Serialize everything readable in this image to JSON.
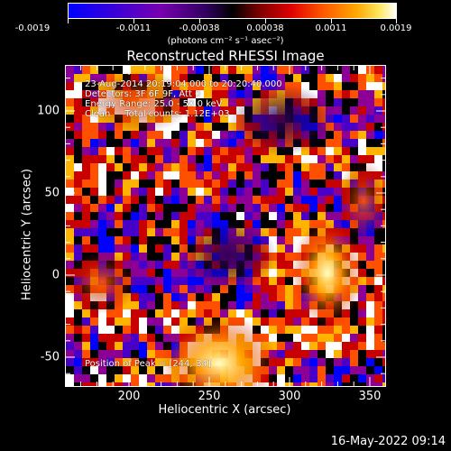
{
  "colorbar": {
    "tick_labels": [
      "-0.0019",
      "-0.0011",
      "-0.00038",
      "0.00038",
      "0.0011",
      "0.0019"
    ],
    "units": "(photons cm⁻² s⁻¹ asec⁻²)",
    "range": [
      -0.0019,
      0.0019
    ]
  },
  "plot": {
    "title": "Reconstructed RHESSI Image",
    "info_lines": [
      "23-Aug-2014 20:19:04.000 to 20:20:40.000",
      "Detectors: 3F 6F 9F, Att 0",
      "Energy Range: 25.0 - 50.0 keV",
      "Clean     Total counts: 1.12E+03"
    ],
    "peak_label": "Position of Peak = [244,-34]",
    "xlabel": "Heliocentric X (arcsec)",
    "ylabel": "Heliocentric Y (arcsec)",
    "x_ticks": [
      "200",
      "250",
      "300",
      "350"
    ],
    "y_ticks": [
      "100",
      "50",
      "0",
      "-50"
    ]
  },
  "footer": {
    "datestamp": "16-May-2022 09:14"
  },
  "colors": {
    "background": "#000000",
    "foreground": "#ffffff",
    "colormap": [
      "#0000ff",
      "#4800c8",
      "#8c0096",
      "#000000",
      "#c80000",
      "#ff5000",
      "#ffb400",
      "#ffffff"
    ]
  }
}
